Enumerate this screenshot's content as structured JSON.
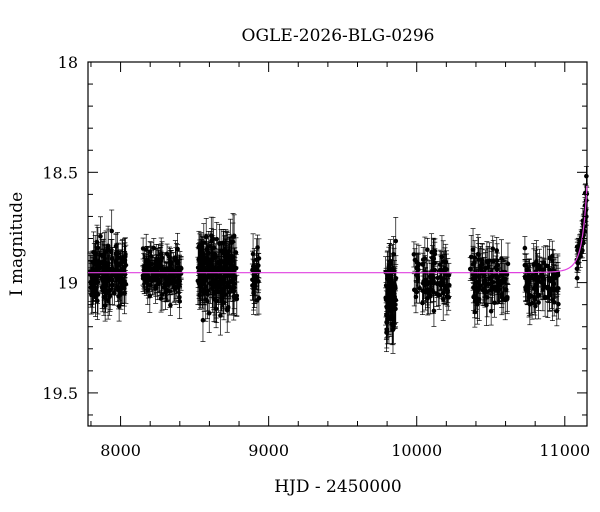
{
  "chart_data": {
    "type": "scatter",
    "title": "OGLE-2026-BLG-0296",
    "xlabel": "HJD - 2450000",
    "ylabel": "I magnitude",
    "xlim": [
      7780,
      11150
    ],
    "ylim": [
      18.0,
      19.65
    ],
    "y_inverted": true,
    "grid": false,
    "x_ticks": [
      8000,
      9000,
      10000,
      11000
    ],
    "x_tick_labels": [
      "8000",
      "9000",
      "10000",
      "11000"
    ],
    "y_ticks": [
      18.0,
      18.5,
      19.0,
      19.5
    ],
    "y_tick_labels": [
      "18",
      "18.5",
      "19",
      "19.5"
    ],
    "series": [
      {
        "kind": "points-with-errorbars",
        "color": "#000000",
        "seasons": [
          {
            "x_range": [
              7790,
              8045
            ],
            "mean_mag": 18.96,
            "scatter": 0.06,
            "typical_err": 0.07,
            "n": 170
          },
          {
            "x_range": [
              8150,
              8410
            ],
            "mean_mag": 18.95,
            "scatter": 0.05,
            "typical_err": 0.06,
            "n": 150
          },
          {
            "x_range": [
              8520,
              8785
            ],
            "mean_mag": 18.96,
            "scatter": 0.07,
            "typical_err": 0.08,
            "n": 220
          },
          {
            "x_range": [
              8890,
              8935
            ],
            "mean_mag": 18.97,
            "scatter": 0.06,
            "typical_err": 0.07,
            "n": 28
          },
          {
            "x_range": [
              9790,
              9860
            ],
            "mean_mag": 19.05,
            "scatter": 0.1,
            "typical_err": 0.09,
            "n": 70
          },
          {
            "x_range": [
              9980,
              10220
            ],
            "mean_mag": 18.98,
            "scatter": 0.06,
            "typical_err": 0.07,
            "n": 90
          },
          {
            "x_range": [
              10360,
              10620
            ],
            "mean_mag": 18.99,
            "scatter": 0.06,
            "typical_err": 0.07,
            "n": 110
          },
          {
            "x_range": [
              10730,
              10960
            ],
            "mean_mag": 19.0,
            "scatter": 0.06,
            "typical_err": 0.07,
            "n": 100
          },
          {
            "x_range": [
              11080,
              11150
            ],
            "mean_mag": 18.55,
            "scatter": 0.04,
            "typical_err": 0.04,
            "n": 45,
            "rising": true
          }
        ]
      },
      {
        "kind": "model-curve",
        "color": "#e040e0",
        "baseline_mag": 18.955,
        "t0": 11200,
        "u0": 0.3,
        "tE": 60
      }
    ]
  }
}
